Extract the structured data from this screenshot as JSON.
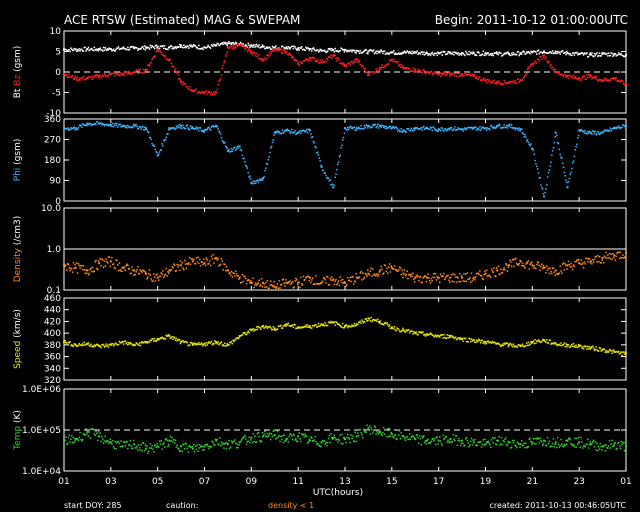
{
  "header": {
    "title": "ACE RTSW (Estimated) MAG & SWEPAM",
    "begin": "Begin: 2011-10-12 01:00:00UTC"
  },
  "footer": {
    "start_doy": "start DOY: 285",
    "caution": "caution:",
    "density_note": "density < 1",
    "created": "created: 2011-10-13 00:46:05UTC"
  },
  "colors": {
    "background": "#000000",
    "bt": "#ffffff",
    "bz": "#ff2020",
    "phi": "#40b8ff",
    "density": "#ff8c1a",
    "speed": "#e8e800",
    "temp": "#30d030"
  },
  "chart_data": {
    "type": "scatter",
    "xlabel": "UTC(hours)",
    "x_ticks": [
      "01",
      "03",
      "05",
      "07",
      "09",
      "11",
      "13",
      "15",
      "17",
      "19",
      "21",
      "23",
      "01"
    ],
    "xlim": [
      0,
      24
    ],
    "panels": [
      {
        "id": "mag",
        "ylabel_parts": [
          {
            "text": "Bt",
            "color": "#ffffff"
          },
          {
            "text": "Bz",
            "color": "#ff2020"
          },
          {
            "text": "(gsm)",
            "color": "#ffffff"
          }
        ],
        "ylim": [
          -10,
          10
        ],
        "yticks": [
          "10",
          "5",
          "0",
          "-5",
          "-10"
        ],
        "ytick_values": [
          10,
          5,
          0,
          -5,
          -10
        ],
        "ref_lines": [
          {
            "y": 0,
            "style": "dashed"
          }
        ],
        "series": [
          {
            "name": "Bt",
            "color": "#ffffff",
            "x": [
              0,
              0.5,
              1,
              1.5,
              2,
              2.5,
              3,
              3.5,
              4,
              4.5,
              5,
              5.5,
              6,
              6.5,
              7,
              7.5,
              8,
              8.5,
              9,
              9.5,
              10,
              10.5,
              11,
              11.5,
              12,
              12.5,
              13,
              13.5,
              14,
              14.5,
              15,
              15.5,
              16,
              16.5,
              17,
              17.5,
              18,
              18.5,
              19,
              19.5,
              20,
              20.5,
              21,
              21.5,
              22,
              22.5,
              23,
              23.5,
              24
            ],
            "values": [
              5.5,
              5.5,
              5.6,
              5.6,
              5.6,
              5.8,
              5.8,
              6.0,
              6.2,
              6.0,
              6.5,
              6.3,
              6.0,
              6.5,
              7.0,
              6.8,
              6.5,
              6.2,
              6.0,
              6.0,
              5.8,
              5.6,
              5.2,
              5.4,
              5.4,
              5.2,
              5.0,
              5.0,
              4.8,
              4.8,
              4.8,
              4.6,
              4.6,
              4.6,
              4.6,
              4.6,
              4.6,
              4.5,
              4.4,
              4.6,
              4.8,
              5.0,
              5.0,
              4.6,
              4.4,
              4.2,
              4.4,
              4.4,
              4.2
            ]
          },
          {
            "name": "Bz",
            "color": "#ff2020",
            "x": [
              0,
              0.5,
              1,
              1.5,
              2,
              2.5,
              3,
              3.5,
              4,
              4.5,
              5,
              5.5,
              6,
              6.5,
              7,
              7.5,
              8,
              8.5,
              9,
              9.5,
              10,
              10.5,
              11,
              11.5,
              12,
              12.5,
              13,
              13.5,
              14,
              14.5,
              15,
              15.5,
              16,
              16.5,
              17,
              17.5,
              18,
              18.5,
              19,
              19.5,
              20,
              20.5,
              21,
              21.5,
              22,
              22.5,
              23,
              23.5,
              24
            ],
            "values": [
              -0.5,
              -1.5,
              -1.5,
              -1.0,
              -0.5,
              -0.5,
              0.0,
              0.5,
              5.5,
              3.0,
              -2.5,
              -4.5,
              -5.0,
              -5.0,
              6.0,
              6.5,
              5.0,
              3.0,
              5.5,
              5.0,
              2.0,
              3.5,
              2.5,
              4.0,
              1.5,
              3.0,
              -0.5,
              1.0,
              3.0,
              1.0,
              0.5,
              0.0,
              -0.5,
              -0.5,
              -0.5,
              -1.0,
              -2.0,
              -2.5,
              -2.5,
              -2.0,
              2.0,
              4.0,
              0.0,
              -1.0,
              -1.5,
              -1.0,
              -2.0,
              -1.5,
              -3.0
            ]
          }
        ]
      },
      {
        "id": "phi",
        "ylabel_parts": [
          {
            "text": "Phi",
            "color": "#40b8ff"
          },
          {
            "text": "(gsm)",
            "color": "#ffffff"
          }
        ],
        "ylim": [
          0,
          360
        ],
        "yticks": [
          "360",
          "270",
          "180",
          "90",
          "0"
        ],
        "ytick_values": [
          360,
          270,
          180,
          90,
          0
        ],
        "ref_lines": [],
        "series": [
          {
            "name": "Phi",
            "color": "#40b8ff",
            "x": [
              0,
              0.5,
              1,
              1.5,
              2,
              2.5,
              3,
              3.5,
              4,
              4.5,
              5,
              5.5,
              6,
              6.5,
              7,
              7.5,
              8,
              8.5,
              9,
              9.5,
              10,
              10.5,
              11,
              11.5,
              12,
              12.5,
              13,
              13.5,
              14,
              14.5,
              15,
              15.5,
              16,
              16.5,
              17,
              17.5,
              18,
              18.5,
              19,
              19.5,
              20,
              20.5,
              21,
              21.5,
              22,
              22.5,
              23,
              23.5,
              24
            ],
            "values": [
              320,
              320,
              340,
              340,
              335,
              330,
              330,
              320,
              200,
              320,
              330,
              320,
              310,
              330,
              220,
              240,
              80,
              100,
              300,
              310,
              300,
              310,
              150,
              60,
              320,
              320,
              330,
              330,
              320,
              310,
              320,
              320,
              315,
              320,
              315,
              320,
              320,
              330,
              330,
              315,
              230,
              20,
              300,
              60,
              310,
              300,
              300,
              320,
              330
            ]
          }
        ]
      },
      {
        "id": "density",
        "ylabel_parts": [
          {
            "text": "Density",
            "color": "#ff8c1a"
          },
          {
            "text": "(/cm3)",
            "color": "#ffffff"
          }
        ],
        "ylim": [
          0.1,
          10
        ],
        "yscale": "log",
        "yticks": [
          "10.0",
          "1.0",
          "0.1"
        ],
        "ytick_values": [
          10,
          1,
          0.1
        ],
        "ref_lines": [
          {
            "y": 1.0,
            "style": "solid"
          }
        ],
        "series": [
          {
            "name": "Density",
            "color": "#ff8c1a",
            "x": [
              0,
              0.5,
              1,
              1.5,
              2,
              2.5,
              3,
              3.5,
              4,
              4.5,
              5,
              5.5,
              6,
              6.5,
              7,
              7.5,
              8,
              8.5,
              9,
              9.5,
              10,
              10.5,
              11,
              11.5,
              12,
              12.5,
              13,
              13.5,
              14,
              14.5,
              15,
              15.5,
              16,
              16.5,
              17,
              17.5,
              18,
              18.5,
              19,
              19.5,
              20,
              20.5,
              21,
              21.5,
              22,
              22.5,
              23,
              23.5,
              24
            ],
            "values": [
              0.4,
              0.35,
              0.3,
              0.45,
              0.5,
              0.35,
              0.3,
              0.25,
              0.2,
              0.3,
              0.4,
              0.5,
              0.45,
              0.6,
              0.3,
              0.2,
              0.15,
              0.15,
              0.12,
              0.15,
              0.15,
              0.2,
              0.15,
              0.18,
              0.15,
              0.2,
              0.25,
              0.3,
              0.35,
              0.25,
              0.2,
              0.2,
              0.2,
              0.2,
              0.2,
              0.2,
              0.25,
              0.3,
              0.4,
              0.5,
              0.4,
              0.35,
              0.3,
              0.4,
              0.45,
              0.5,
              0.6,
              0.7,
              0.8
            ]
          }
        ]
      },
      {
        "id": "speed",
        "ylabel_parts": [
          {
            "text": "Speed",
            "color": "#e8e800"
          },
          {
            "text": "(km/s)",
            "color": "#ffffff"
          }
        ],
        "ylim": [
          320,
          460
        ],
        "yticks": [
          "460",
          "440",
          "420",
          "400",
          "380",
          "360",
          "340",
          "320"
        ],
        "ytick_values": [
          460,
          440,
          420,
          400,
          380,
          360,
          340,
          320
        ],
        "ref_lines": [],
        "series": [
          {
            "name": "Speed",
            "color": "#e8e800",
            "x": [
              0,
              0.5,
              1,
              1.5,
              2,
              2.5,
              3,
              3.5,
              4,
              4.5,
              5,
              5.5,
              6,
              6.5,
              7,
              7.5,
              8,
              8.5,
              9,
              9.5,
              10,
              10.5,
              11,
              11.5,
              12,
              12.5,
              13,
              13.5,
              14,
              14.5,
              15,
              15.5,
              16,
              16.5,
              17,
              17.5,
              18,
              18.5,
              19,
              19.5,
              20,
              20.5,
              21,
              21.5,
              22,
              22.5,
              23,
              23.5,
              24
            ],
            "values": [
              385,
              380,
              382,
              378,
              380,
              385,
              380,
              385,
              390,
              395,
              385,
              380,
              382,
              385,
              380,
              395,
              405,
              412,
              408,
              415,
              410,
              412,
              415,
              418,
              412,
              415,
              425,
              420,
              410,
              405,
              400,
              398,
              395,
              395,
              390,
              388,
              385,
              382,
              380,
              378,
              385,
              388,
              382,
              380,
              378,
              375,
              372,
              368,
              365
            ]
          }
        ]
      },
      {
        "id": "temp",
        "ylabel_parts": [
          {
            "text": "Temp",
            "color": "#30d030"
          },
          {
            "text": "(K)",
            "color": "#ffffff"
          }
        ],
        "ylim": [
          10000,
          1000000
        ],
        "yscale": "log",
        "yticks": [
          "1.0E+06",
          "1.0E+05",
          "1.0E+04"
        ],
        "ytick_values": [
          1000000,
          100000,
          10000
        ],
        "ref_lines": [
          {
            "y": 100000,
            "style": "dashed"
          }
        ],
        "series": [
          {
            "name": "Temp",
            "color": "#30d030",
            "x": [
              0,
              0.5,
              1,
              1.5,
              2,
              2.5,
              3,
              3.5,
              4,
              4.5,
              5,
              5.5,
              6,
              6.5,
              7,
              7.5,
              8,
              8.5,
              9,
              9.5,
              10,
              10.5,
              11,
              11.5,
              12,
              12.5,
              13,
              13.5,
              14,
              14.5,
              15,
              15.5,
              16,
              16.5,
              17,
              17.5,
              18,
              18.5,
              19,
              19.5,
              20,
              20.5,
              21,
              21.5,
              22,
              22.5,
              23,
              23.5,
              24
            ],
            "values": [
              55000,
              60000,
              90000,
              70000,
              50000,
              40000,
              45000,
              35000,
              40000,
              55000,
              40000,
              35000,
              40000,
              55000,
              45000,
              50000,
              65000,
              70000,
              75000,
              60000,
              70000,
              55000,
              50000,
              65000,
              60000,
              70000,
              110000,
              90000,
              80000,
              70000,
              60000,
              55000,
              55000,
              60000,
              55000,
              50000,
              45000,
              55000,
              50000,
              45000,
              50000,
              55000,
              50000,
              55000,
              50000,
              45000,
              40000,
              45000,
              40000
            ]
          }
        ]
      }
    ]
  }
}
